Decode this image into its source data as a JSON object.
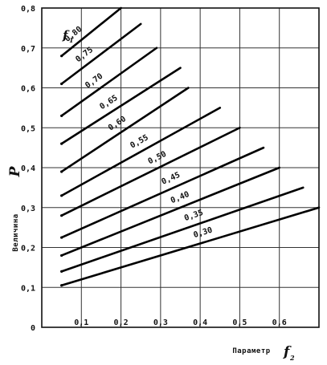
{
  "chart_data": {
    "type": "line",
    "xlim": [
      0,
      0.7
    ],
    "ylim": [
      0,
      0.8
    ],
    "grid": true,
    "x_ticks": [
      0.1,
      0.2,
      0.3,
      0.4,
      0.5,
      0.6
    ],
    "x_tick_labels": [
      "0,1",
      "0,2",
      "0,3",
      "0,4",
      "0,5",
      "0,6"
    ],
    "y_ticks": [
      0,
      0.1,
      0.2,
      0.3,
      0.4,
      0.5,
      0.6,
      0.7,
      0.8
    ],
    "y_tick_labels": [
      "0",
      "0,1",
      "0,2",
      "0,3",
      "0,4",
      "0,5",
      "0,6",
      "0,7",
      "0,8"
    ],
    "xlabel": "Параметр",
    "xlabel_symbol": "f",
    "xlabel_symbol_sub": "2",
    "ylabel": "Величина",
    "ylabel_symbol": "P",
    "series_parameter_symbol": "f",
    "series_parameter_sub": "1",
    "series": [
      {
        "name": "0,80",
        "x": [
          0.05,
          0.2
        ],
        "y": [
          0.68,
          0.8
        ]
      },
      {
        "name": "0,75",
        "x": [
          0.05,
          0.25
        ],
        "y": [
          0.61,
          0.76
        ]
      },
      {
        "name": "0,70",
        "x": [
          0.05,
          0.29
        ],
        "y": [
          0.53,
          0.7
        ]
      },
      {
        "name": "0,65",
        "x": [
          0.05,
          0.35
        ],
        "y": [
          0.46,
          0.65
        ]
      },
      {
        "name": "0,60",
        "x": [
          0.05,
          0.37
        ],
        "y": [
          0.39,
          0.6
        ]
      },
      {
        "name": "0,55",
        "x": [
          0.05,
          0.45
        ],
        "y": [
          0.33,
          0.55
        ]
      },
      {
        "name": "0,50",
        "x": [
          0.05,
          0.5
        ],
        "y": [
          0.28,
          0.5
        ]
      },
      {
        "name": "0,45",
        "x": [
          0.05,
          0.56
        ],
        "y": [
          0.225,
          0.45
        ]
      },
      {
        "name": "0,40",
        "x": [
          0.05,
          0.6
        ],
        "y": [
          0.18,
          0.4
        ]
      },
      {
        "name": "0,35",
        "x": [
          0.05,
          0.66
        ],
        "y": [
          0.14,
          0.35
        ]
      },
      {
        "name": "0,30",
        "x": [
          0.05,
          0.7
        ],
        "y": [
          0.105,
          0.3
        ]
      }
    ]
  }
}
